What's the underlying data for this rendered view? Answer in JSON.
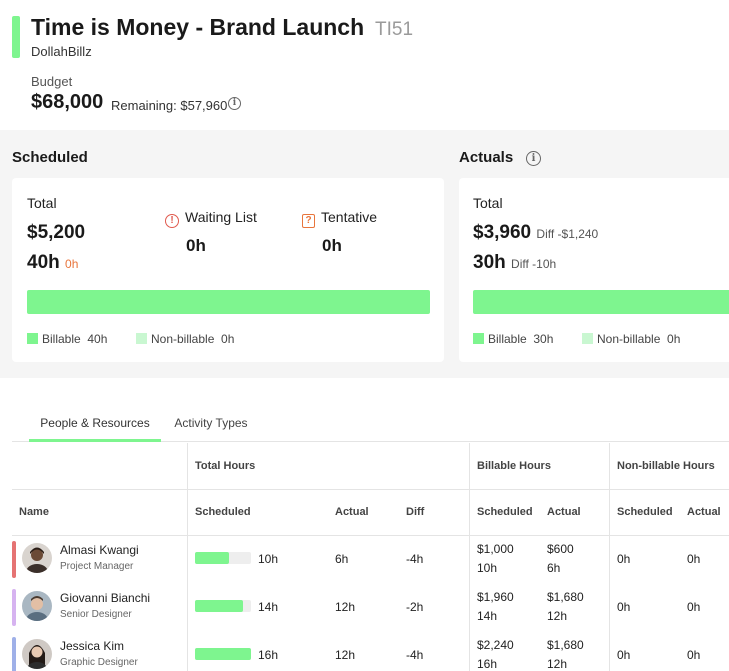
{
  "header": {
    "title": "Time is Money - Brand Launch",
    "code": "TI51",
    "client": "DollahBillz",
    "budget_label": "Budget",
    "budget_value": "$68,000",
    "budget_remaining": "Remaining: $57,960",
    "accent_color": "#7ef58f"
  },
  "scheduled": {
    "title": "Scheduled",
    "total_label": "Total",
    "total_amount": "$5,200",
    "total_hours": "40h",
    "total_hours_extra": "0h",
    "waiting_label": "Waiting List",
    "waiting_value": "0h",
    "tentative_label": "Tentative",
    "tentative_value": "0h",
    "billable_label": "Billable",
    "billable_value": "40h",
    "nonbillable_label": "Non-billable",
    "nonbillable_value": "0h"
  },
  "actuals": {
    "title": "Actuals",
    "total_label": "Total",
    "total_amount": "$3,960",
    "amount_diff": "Diff -$1,240",
    "total_hours": "30h",
    "hours_diff": "Diff -10h",
    "billable_label": "Billable",
    "billable_value": "30h",
    "nonbillable_label": "Non-billable",
    "nonbillable_value": "0h"
  },
  "tabs": [
    {
      "label": "People & Resources",
      "active": true
    },
    {
      "label": "Activity Types",
      "active": false
    }
  ],
  "table": {
    "group_headers": {
      "total_hours": "Total Hours",
      "billable_hours": "Billable Hours",
      "nonbillable_hours": "Non-billable Hours"
    },
    "columns": {
      "name": "Name",
      "scheduled": "Scheduled",
      "actual": "Actual",
      "diff": "Diff",
      "bill_scheduled": "Scheduled",
      "bill_actual": "Actual",
      "non_scheduled": "Scheduled",
      "non_actual": "Actual"
    },
    "rows": [
      {
        "name": "Almasi Kwangi",
        "role": "Project Manager",
        "accent": "#e57373",
        "scheduled": "10h",
        "scheduled_fill": 0.6,
        "actual": "6h",
        "diff": "-4h",
        "bill_sched_amount": "$1,000",
        "bill_sched_hours": "10h",
        "bill_actual_amount": "$600",
        "bill_actual_hours": "6h",
        "non_scheduled": "0h",
        "non_actual": "0h"
      },
      {
        "name": "Giovanni Bianchi",
        "role": "Senior Designer",
        "accent": "#d6b3f0",
        "scheduled": "14h",
        "scheduled_fill": 0.85,
        "actual": "12h",
        "diff": "-2h",
        "bill_sched_amount": "$1,960",
        "bill_sched_hours": "14h",
        "bill_actual_amount": "$1,680",
        "bill_actual_hours": "12h",
        "non_scheduled": "0h",
        "non_actual": "0h"
      },
      {
        "name": "Jessica Kim",
        "role": "Graphic Designer",
        "accent": "#9fb0e8",
        "scheduled": "16h",
        "scheduled_fill": 1.0,
        "actual": "12h",
        "diff": "-4h",
        "bill_sched_amount": "$2,240",
        "bill_sched_hours": "16h",
        "bill_actual_amount": "$1,680",
        "bill_actual_hours": "12h",
        "non_scheduled": "0h",
        "non_actual": "0h"
      }
    ]
  }
}
